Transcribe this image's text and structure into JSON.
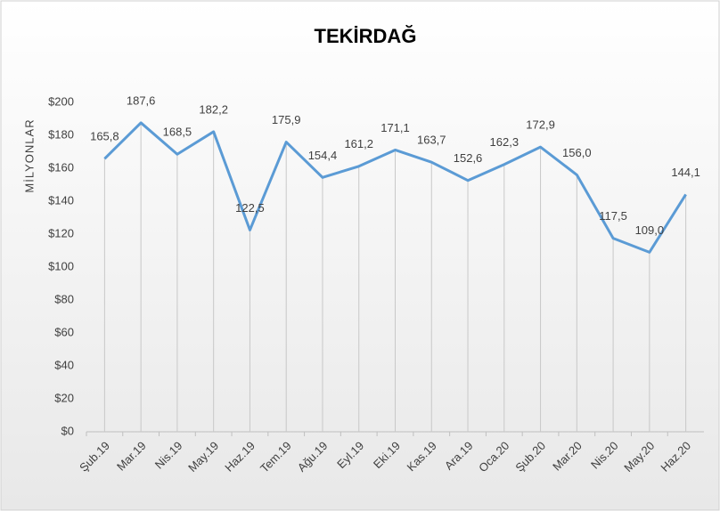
{
  "chart_data": {
    "type": "line",
    "title": "TEKİRDAĞ",
    "y_label": "MİLYONLAR",
    "categories": [
      "Şub.19",
      "Mar.19",
      "Nis.19",
      "May.19",
      "Haz.19",
      "Tem.19",
      "Ağu.19",
      "Eyl.19",
      "Eki.19",
      "Kas.19",
      "Ara.19",
      "Oca.20",
      "Şub.20",
      "Mar.20",
      "Nis.20",
      "May.20",
      "Haz.20"
    ],
    "values": [
      165.8,
      187.6,
      168.5,
      182.2,
      122.5,
      175.9,
      154.4,
      161.2,
      171.1,
      163.7,
      152.6,
      162.3,
      172.9,
      156.0,
      117.5,
      109.0,
      144.1
    ],
    "value_labels": [
      "165,8",
      "187,6",
      "168,5",
      "182,2",
      "122,5",
      "175,9",
      "154,4",
      "161,2",
      "171,1",
      "163,7",
      "152,6",
      "162,3",
      "172,9",
      "156,0",
      "117,5",
      "109,0",
      "144,1"
    ],
    "color": "#5b9bd5",
    "ylim": [
      0,
      200
    ],
    "yticks": [
      {
        "value": 0,
        "label": "$0"
      },
      {
        "value": 20,
        "label": "$20"
      },
      {
        "value": 40,
        "label": "$40"
      },
      {
        "value": 60,
        "label": "$60"
      },
      {
        "value": 80,
        "label": "$80"
      },
      {
        "value": 100,
        "label": "$100"
      },
      {
        "value": 120,
        "label": "$120"
      },
      {
        "value": 140,
        "label": "$140"
      },
      {
        "value": 160,
        "label": "$160"
      },
      {
        "value": 180,
        "label": "$180"
      },
      {
        "value": 200,
        "label": "$200"
      }
    ],
    "drop_lines": true
  }
}
